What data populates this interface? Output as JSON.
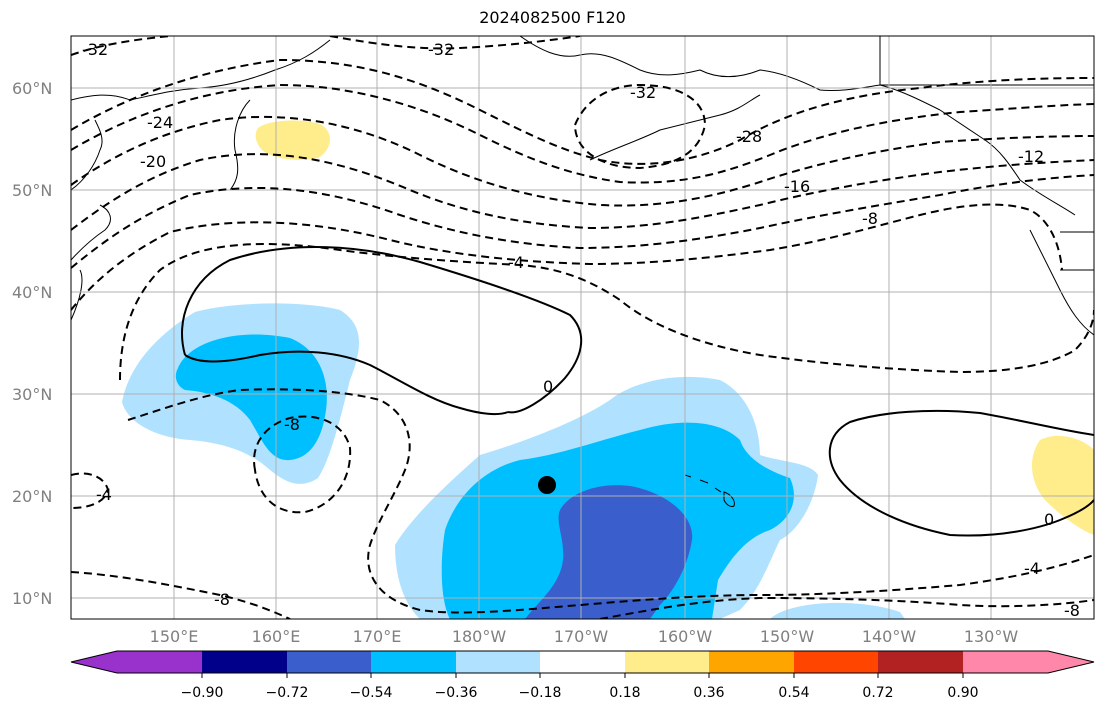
{
  "title": "2024082500 F120",
  "lat_labels": [
    "60°N",
    "50°N",
    "40°N",
    "30°N",
    "20°N",
    "10°N"
  ],
  "lon_labels": [
    "150°E",
    "160°E",
    "170°E",
    "180°W",
    "170°W",
    "160°W",
    "150°W",
    "140°W",
    "130°W"
  ],
  "colorbar": {
    "tick_labels": [
      "−0.90",
      "−0.72",
      "−0.54",
      "−0.36",
      "−0.18",
      "0.18",
      "0.36",
      "0.54",
      "0.72",
      "0.90"
    ],
    "colors": [
      "#9932cc",
      "#00008b",
      "#3a5fcd",
      "#00bfff",
      "#b0e2ff",
      "#ffffff",
      "#ffec8b",
      "#ffa500",
      "#ff4500",
      "#b22222",
      "#ff88aa",
      "#ff88aa"
    ]
  },
  "contour_labels": [
    "-32",
    "-32",
    "-32",
    "-28",
    "-24",
    "-20",
    "-16",
    "-12",
    "-8",
    "-4",
    "0",
    "-8",
    "-4",
    "0",
    "-4",
    "-8",
    "-8"
  ],
  "colors": {
    "light_blue": "#b0e2ff",
    "deep_sky_blue": "#00bfff",
    "royal_blue": "#3a5fcd",
    "light_yellow": "#ffec8b",
    "grid": "#b0b0b0",
    "land_line": "#000000"
  },
  "marker": "storm-center-dot"
}
